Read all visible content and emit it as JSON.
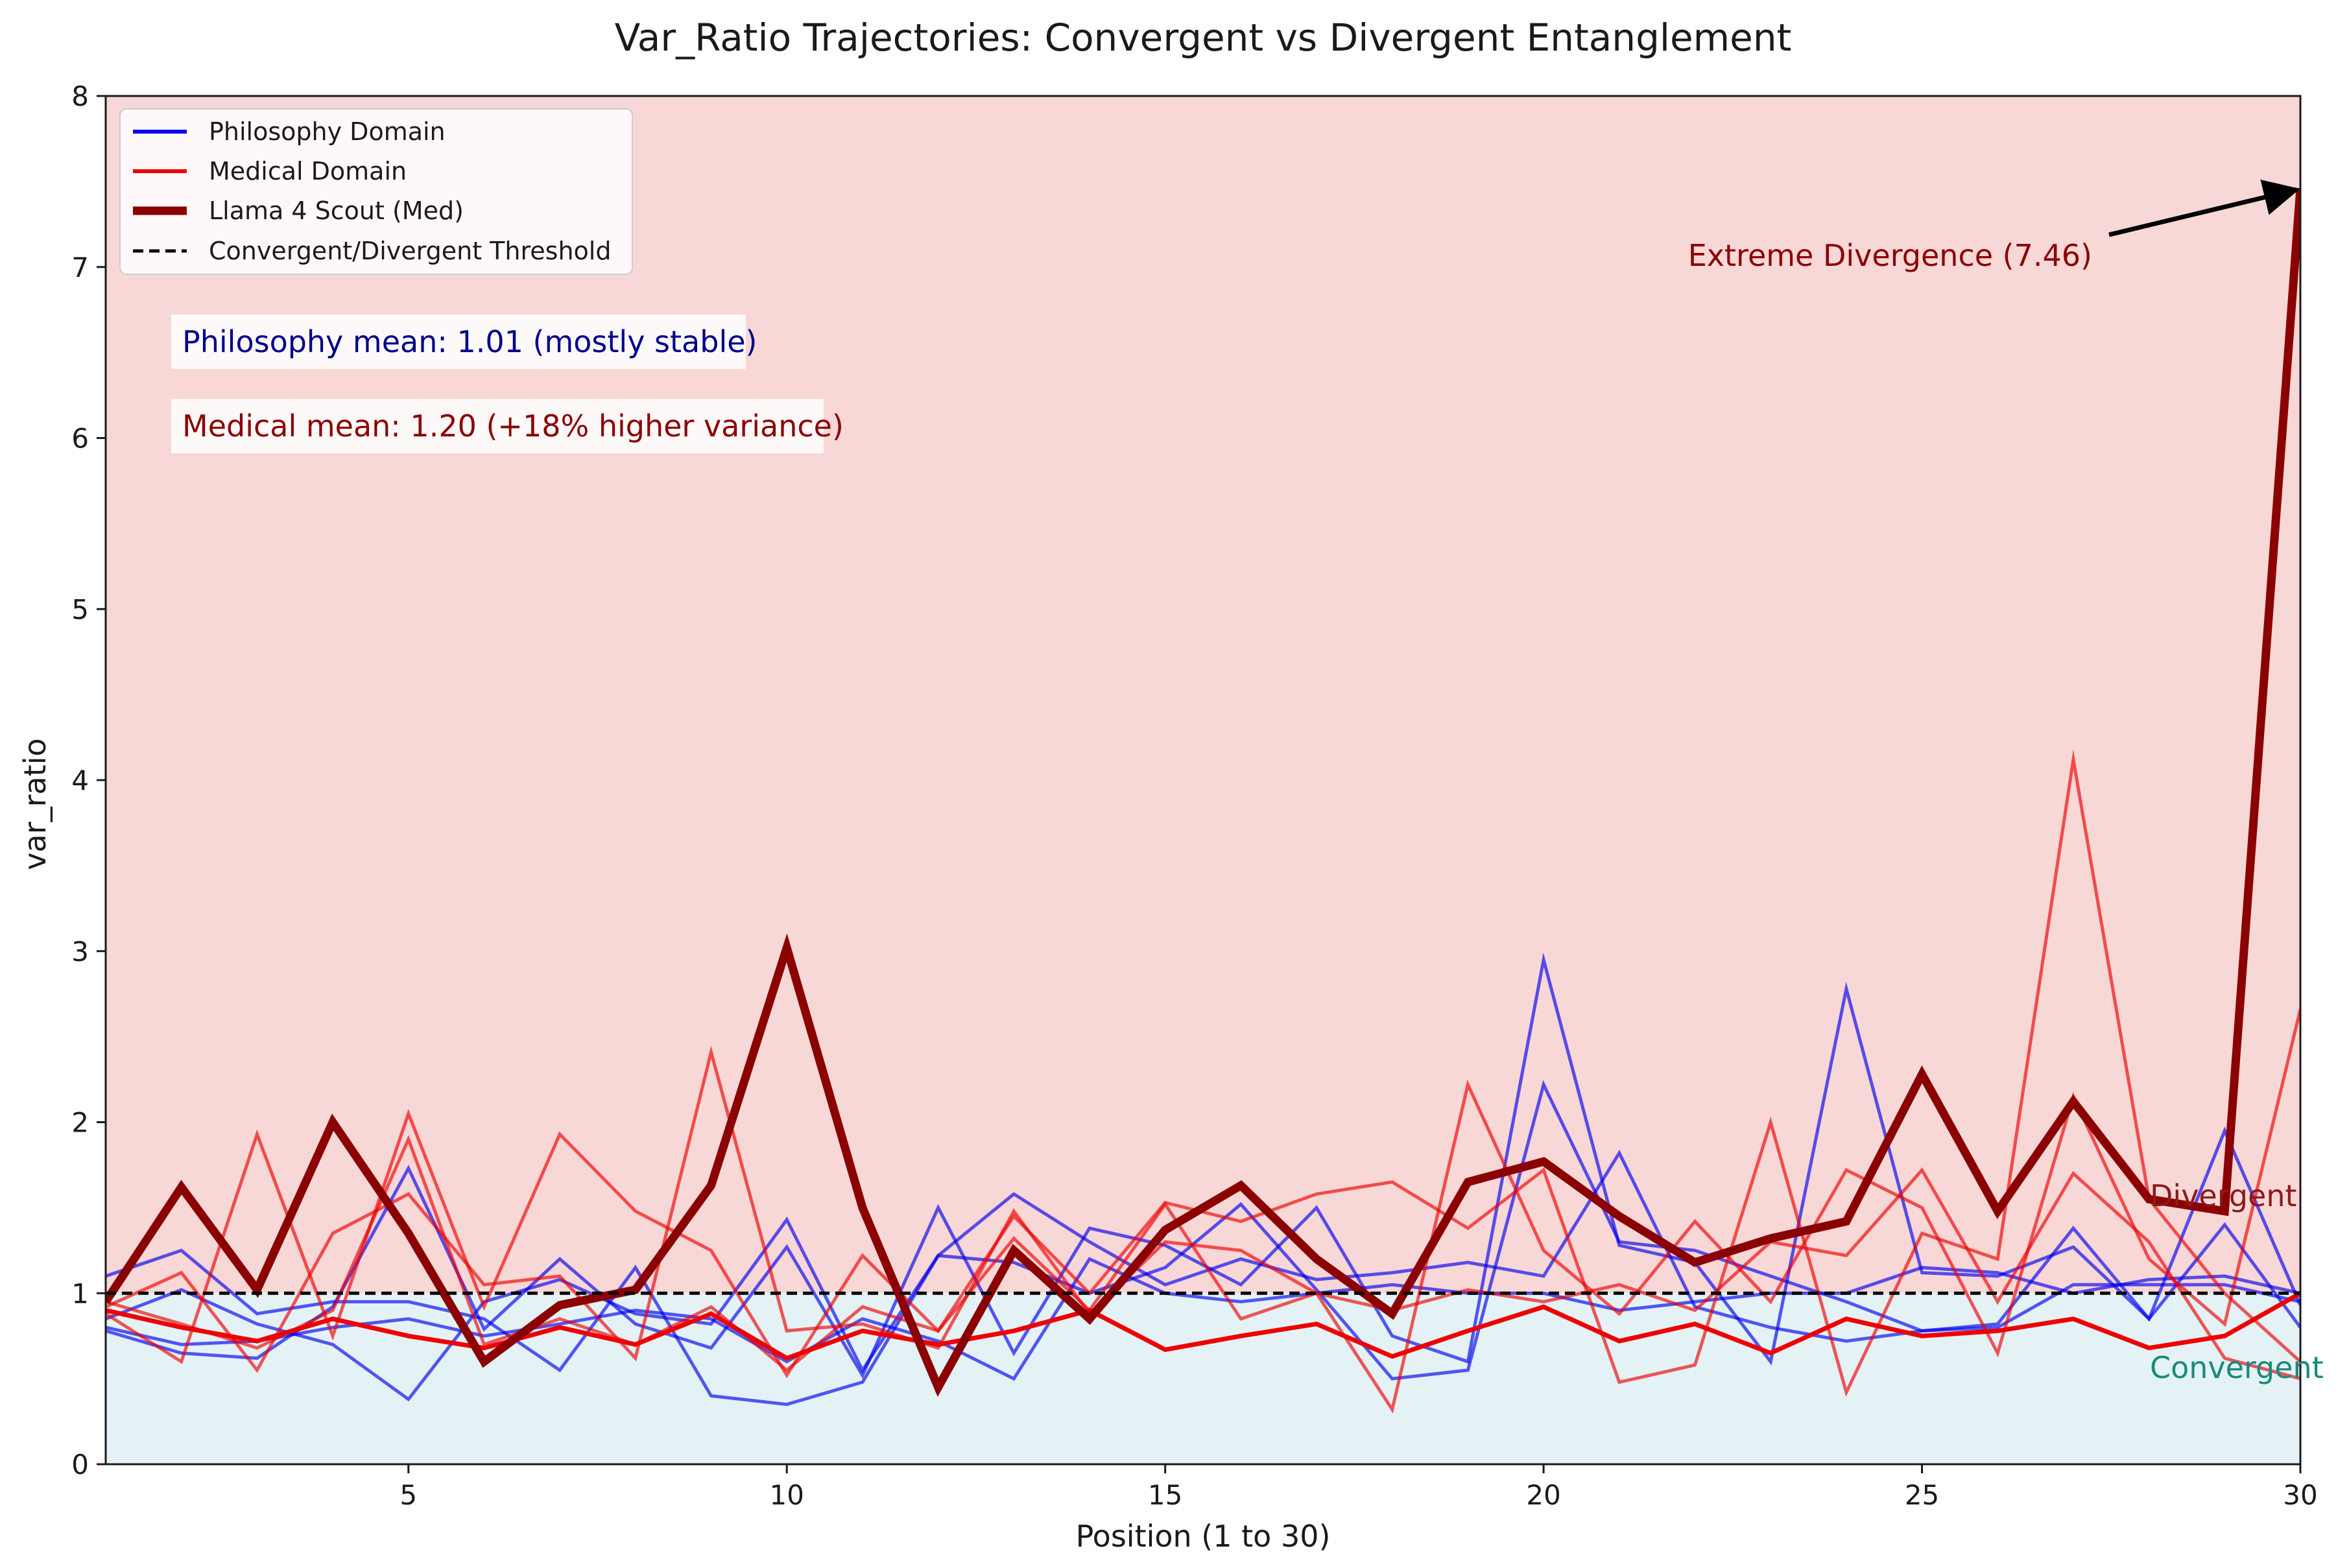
{
  "chart_data": {
    "type": "line",
    "title": "Var_Ratio Trajectories: Convergent vs Divergent Entanglement",
    "xlabel": "Position (1 to 30)",
    "ylabel": "var_ratio",
    "xlim": [
      1,
      30
    ],
    "ylim": [
      0,
      8
    ],
    "xticks": [
      5,
      10,
      15,
      20,
      25,
      30
    ],
    "yticks": [
      0,
      1,
      2,
      3,
      4,
      5,
      6,
      7,
      8
    ],
    "x": [
      1,
      2,
      3,
      4,
      5,
      6,
      7,
      8,
      9,
      10,
      11,
      12,
      13,
      14,
      15,
      16,
      17,
      18,
      19,
      20,
      21,
      22,
      23,
      24,
      25,
      26,
      27,
      28,
      29,
      30
    ],
    "threshold": 1.0,
    "regions": {
      "divergent_label": "Divergent",
      "convergent_label": "Convergent",
      "divergent_color": "#f8d7d7",
      "convergent_color": "#e4f2f6"
    },
    "legend": [
      {
        "label": "Philosophy Domain",
        "color": "#0000ee",
        "style": "solid",
        "weight": "thin"
      },
      {
        "label": "Medical Domain",
        "color": "#ee0000",
        "style": "solid",
        "weight": "thin"
      },
      {
        "label": "Llama 4 Scout (Med)",
        "color": "#8b0000",
        "style": "solid",
        "weight": "thick"
      },
      {
        "label": "Convergent/Divergent Threshold",
        "color": "#000000",
        "style": "dashed",
        "weight": "thin"
      }
    ],
    "series": [
      {
        "name": "Philosophy Domain",
        "group": "philosophy",
        "color": "#0000ee",
        "opacity": 0.65,
        "width": 5,
        "values": [
          0.78,
          0.65,
          0.62,
          0.92,
          1.73,
          0.79,
          1.2,
          0.82,
          0.68,
          1.27,
          0.52,
          1.5,
          0.65,
          1.38,
          1.28,
          1.05,
          1.5,
          0.75,
          0.6,
          2.95,
          1.28,
          1.18,
          0.6,
          2.78,
          1.12,
          1.1,
          1.27,
          0.85,
          1.95,
          0.93
        ]
      },
      {
        "name": "Philosophy Domain",
        "group": "philosophy",
        "color": "#0000ee",
        "opacity": 0.65,
        "width": 5,
        "values": [
          1.1,
          1.25,
          0.88,
          0.95,
          0.95,
          0.85,
          0.55,
          1.15,
          0.4,
          0.35,
          0.48,
          1.22,
          1.58,
          1.3,
          1.05,
          1.2,
          1.08,
          1.12,
          1.18,
          1.1,
          1.82,
          0.92,
          0.8,
          0.72,
          0.78,
          0.82,
          1.38,
          0.85,
          1.4,
          0.8
        ]
      },
      {
        "name": "Philosophy Domain",
        "group": "philosophy",
        "color": "#0000ee",
        "opacity": 0.65,
        "width": 5,
        "values": [
          0.85,
          1.02,
          0.82,
          0.7,
          0.38,
          0.95,
          1.08,
          0.88,
          0.82,
          1.43,
          0.55,
          1.22,
          1.18,
          1.0,
          1.15,
          1.52,
          1.02,
          0.5,
          0.55,
          2.22,
          1.3,
          1.25,
          1.1,
          0.95,
          0.78,
          0.8,
          1.05,
          1.05,
          1.05,
          0.95
        ]
      },
      {
        "name": "Philosophy Domain",
        "group": "philosophy",
        "color": "#0000ee",
        "opacity": 0.65,
        "width": 5,
        "values": [
          0.8,
          0.7,
          0.72,
          0.8,
          0.85,
          0.75,
          0.82,
          0.9,
          0.85,
          0.6,
          0.85,
          0.72,
          0.5,
          1.2,
          1.0,
          0.95,
          1.0,
          1.05,
          1.0,
          1.0,
          0.9,
          0.95,
          1.0,
          1.0,
          1.15,
          1.12,
          1.0,
          1.08,
          1.1,
          1.0
        ]
      },
      {
        "name": "Medical Domain",
        "group": "medical",
        "color": "#ee0000",
        "opacity": 0.65,
        "width": 5,
        "values": [
          0.88,
          0.6,
          1.93,
          0.75,
          2.05,
          0.92,
          1.93,
          1.48,
          1.25,
          0.52,
          1.22,
          0.78,
          1.45,
          1.0,
          1.53,
          1.42,
          1.58,
          1.65,
          1.38,
          1.72,
          0.48,
          0.58,
          2.0,
          0.42,
          1.35,
          1.2,
          4.12,
          1.55,
          1.0,
          0.6
        ]
      },
      {
        "name": "Medical Domain",
        "group": "medical",
        "color": "#ee0000",
        "opacity": 0.65,
        "width": 5,
        "values": [
          0.92,
          1.12,
          0.55,
          1.35,
          1.58,
          1.05,
          1.1,
          0.62,
          2.41,
          0.78,
          0.82,
          0.68,
          1.48,
          0.88,
          1.3,
          1.25,
          1.0,
          0.32,
          2.22,
          1.25,
          0.88,
          1.42,
          0.95,
          1.72,
          1.5,
          0.65,
          2.15,
          1.2,
          0.82,
          2.66
        ]
      },
      {
        "name": "Medical Domain",
        "group": "medical",
        "color": "#ee0000",
        "opacity": 0.65,
        "width": 5,
        "values": [
          0.95,
          0.82,
          0.68,
          0.9,
          1.9,
          0.7,
          0.85,
          0.7,
          0.92,
          0.55,
          0.92,
          0.78,
          1.32,
          0.9,
          1.52,
          0.85,
          1.0,
          0.9,
          1.02,
          0.95,
          1.05,
          0.9,
          1.3,
          1.22,
          1.72,
          0.95,
          1.7,
          1.3,
          0.62,
          0.5
        ]
      },
      {
        "name": "Medical Domain",
        "group": "medical",
        "color": "#ee0000",
        "opacity": 1.0,
        "width": 7,
        "values": [
          0.9,
          0.8,
          0.72,
          0.85,
          0.75,
          0.68,
          0.8,
          0.7,
          0.88,
          0.62,
          0.78,
          0.7,
          0.78,
          0.9,
          0.67,
          0.75,
          0.82,
          0.63,
          0.78,
          0.92,
          0.72,
          0.82,
          0.65,
          0.85,
          0.75,
          0.78,
          0.85,
          0.68,
          0.75,
          1.0
        ]
      },
      {
        "name": "Llama 4 Scout (Med)",
        "group": "llama",
        "color": "#8b0000",
        "opacity": 1.0,
        "width": 13,
        "values": [
          0.95,
          1.62,
          1.02,
          2.0,
          1.35,
          0.6,
          0.93,
          1.02,
          1.63,
          3.02,
          1.5,
          0.45,
          1.25,
          0.85,
          1.37,
          1.63,
          1.2,
          0.88,
          1.65,
          1.77,
          1.45,
          1.18,
          1.32,
          1.42,
          2.28,
          1.48,
          2.12,
          1.55,
          1.48,
          7.46
        ]
      }
    ],
    "annotations": {
      "philosophy_mean": "Philosophy mean: 1.01 (mostly stable)",
      "medical_mean": "Medical mean: 1.20 (+18% higher variance)",
      "extreme": "Extreme Divergence (7.46)",
      "extreme_point": {
        "x": 30,
        "y": 7.46
      }
    }
  }
}
